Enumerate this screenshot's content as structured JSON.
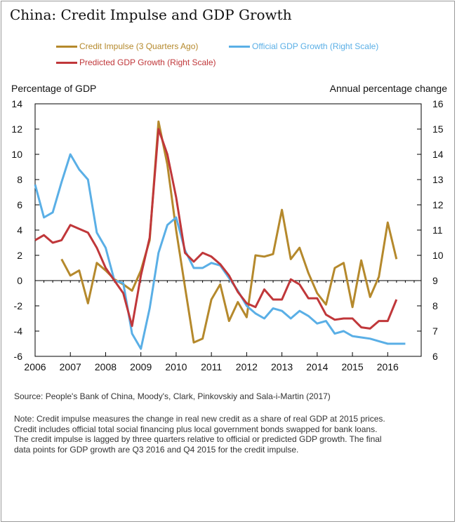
{
  "title": "China: Credit Impulse and GDP Growth",
  "legend": [
    {
      "label": "Credit Impulse (3 Quarters Ago)",
      "color": "#b5892c"
    },
    {
      "label": "Official GDP Growth (Right Scale)",
      "color": "#5aafe6"
    },
    {
      "label": "Predicted GDP Growth (Right Scale)",
      "color": "#c0373a"
    }
  ],
  "left_axis_title": "Percentage of GDP",
  "right_axis_title": "Annual percentage change",
  "source_text": "Source: People's Bank of China, Moody's, Clark, Pinkovskiy and Sala-i-Martin (2017)",
  "note_lines": [
    "Note: Credit impulse measures the change in real new credit as a share of  real GDP at 2015 prices.",
    "Credit includes official total social financing plus local government bonds swapped for bank loans.",
    "The credit impulse is lagged by three quarters relative to official or predicted GDP growth. The final",
    "data points for GDP growth are Q3 2016 and Q4 2015 for the credit impulse."
  ],
  "chart_data": {
    "type": "line",
    "x_label_years": [
      "2006",
      "2007",
      "2008",
      "2009",
      "2010",
      "2011",
      "2012",
      "2013",
      "2014",
      "2015",
      "2016"
    ],
    "xlim": [
      2006.0,
      2016.95
    ],
    "y_left": {
      "lim": [
        -6,
        14
      ],
      "ticks": [
        -6,
        -4,
        -2,
        0,
        2,
        4,
        6,
        8,
        10,
        12,
        14
      ]
    },
    "y_right": {
      "lim": [
        6,
        16
      ],
      "ticks": [
        6,
        7,
        8,
        9,
        10,
        11,
        12,
        13,
        14,
        15,
        16
      ]
    },
    "grid": false,
    "legend_position": "top",
    "series": [
      {
        "name": "Credit Impulse (3 Quarters Ago)",
        "axis": "left",
        "color": "#b5892c",
        "points": [
          [
            2006.75,
            1.7
          ],
          [
            2007.0,
            0.4
          ],
          [
            2007.25,
            0.8
          ],
          [
            2007.5,
            -1.8
          ],
          [
            2007.75,
            1.4
          ],
          [
            2008.0,
            0.8
          ],
          [
            2008.25,
            0.1
          ],
          [
            2008.5,
            -0.3
          ],
          [
            2008.75,
            -0.8
          ],
          [
            2009.0,
            0.8
          ],
          [
            2009.25,
            3.2
          ],
          [
            2009.5,
            12.6
          ],
          [
            2009.75,
            9.2
          ],
          [
            2010.0,
            4.0
          ],
          [
            2010.25,
            -0.5
          ],
          [
            2010.5,
            -4.9
          ],
          [
            2010.75,
            -4.6
          ],
          [
            2011.0,
            -1.5
          ],
          [
            2011.25,
            -0.3
          ],
          [
            2011.5,
            -3.2
          ],
          [
            2011.75,
            -1.7
          ],
          [
            2012.0,
            -2.9
          ],
          [
            2012.25,
            2.0
          ],
          [
            2012.5,
            1.9
          ],
          [
            2012.75,
            2.1
          ],
          [
            2013.0,
            5.6
          ],
          [
            2013.25,
            1.7
          ],
          [
            2013.5,
            2.6
          ],
          [
            2013.75,
            0.6
          ],
          [
            2014.0,
            -1.0
          ],
          [
            2014.25,
            -1.9
          ],
          [
            2014.5,
            1.0
          ],
          [
            2014.75,
            1.4
          ],
          [
            2015.0,
            -2.1
          ],
          [
            2015.25,
            1.6
          ],
          [
            2015.5,
            -1.3
          ],
          [
            2015.75,
            0.3
          ],
          [
            2016.0,
            4.6
          ],
          [
            2016.25,
            1.7
          ]
        ]
      },
      {
        "name": "Official GDP Growth (Right Scale)",
        "axis": "right",
        "color": "#5aafe6",
        "points": [
          [
            2006.0,
            12.8
          ],
          [
            2006.25,
            11.5
          ],
          [
            2006.5,
            11.7
          ],
          [
            2006.75,
            12.9
          ],
          [
            2007.0,
            14.0
          ],
          [
            2007.25,
            13.4
          ],
          [
            2007.5,
            13.0
          ],
          [
            2007.75,
            10.9
          ],
          [
            2008.0,
            10.3
          ],
          [
            2008.25,
            9.0
          ],
          [
            2008.5,
            8.9
          ],
          [
            2008.75,
            6.9
          ],
          [
            2009.0,
            6.3
          ],
          [
            2009.25,
            7.9
          ],
          [
            2009.5,
            10.1
          ],
          [
            2009.75,
            11.2
          ],
          [
            2010.0,
            11.5
          ],
          [
            2010.25,
            10.2
          ],
          [
            2010.5,
            9.5
          ],
          [
            2010.75,
            9.5
          ],
          [
            2011.0,
            9.7
          ],
          [
            2011.25,
            9.6
          ],
          [
            2011.5,
            9.1
          ],
          [
            2011.75,
            8.6
          ],
          [
            2012.0,
            8.0
          ],
          [
            2012.25,
            7.7
          ],
          [
            2012.5,
            7.5
          ],
          [
            2012.75,
            7.9
          ],
          [
            2013.0,
            7.8
          ],
          [
            2013.25,
            7.5
          ],
          [
            2013.5,
            7.8
          ],
          [
            2013.75,
            7.6
          ],
          [
            2014.0,
            7.3
          ],
          [
            2014.25,
            7.4
          ],
          [
            2014.5,
            6.9
          ],
          [
            2014.75,
            7.0
          ],
          [
            2015.0,
            6.8
          ],
          [
            2015.25,
            6.75
          ],
          [
            2015.5,
            6.7
          ],
          [
            2015.75,
            6.6
          ],
          [
            2016.0,
            6.5
          ],
          [
            2016.25,
            6.5
          ],
          [
            2016.5,
            6.5
          ]
        ]
      },
      {
        "name": "Predicted GDP Growth (Right Scale)",
        "axis": "right",
        "color": "#c0373a",
        "points": [
          [
            2006.0,
            10.6
          ],
          [
            2006.25,
            10.8
          ],
          [
            2006.5,
            10.5
          ],
          [
            2006.75,
            10.6
          ],
          [
            2007.0,
            11.2
          ],
          [
            2007.25,
            11.05
          ],
          [
            2007.5,
            10.9
          ],
          [
            2007.75,
            10.3
          ],
          [
            2008.0,
            9.5
          ],
          [
            2008.25,
            9.0
          ],
          [
            2008.5,
            8.5
          ],
          [
            2008.75,
            7.2
          ],
          [
            2009.0,
            9.2
          ],
          [
            2009.25,
            10.7
          ],
          [
            2009.5,
            15.0
          ],
          [
            2009.75,
            14.0
          ],
          [
            2010.0,
            12.3
          ],
          [
            2010.25,
            10.1
          ],
          [
            2010.5,
            9.75
          ],
          [
            2010.75,
            10.1
          ],
          [
            2011.0,
            9.95
          ],
          [
            2011.25,
            9.65
          ],
          [
            2011.5,
            9.2
          ],
          [
            2011.75,
            8.55
          ],
          [
            2012.0,
            8.1
          ],
          [
            2012.25,
            7.95
          ],
          [
            2012.5,
            8.65
          ],
          [
            2012.75,
            8.25
          ],
          [
            2013.0,
            8.25
          ],
          [
            2013.25,
            9.05
          ],
          [
            2013.5,
            8.85
          ],
          [
            2013.75,
            8.3
          ],
          [
            2014.0,
            8.3
          ],
          [
            2014.25,
            7.65
          ],
          [
            2014.5,
            7.45
          ],
          [
            2014.75,
            7.5
          ],
          [
            2015.0,
            7.5
          ],
          [
            2015.25,
            7.15
          ],
          [
            2015.5,
            7.1
          ],
          [
            2015.75,
            7.4
          ],
          [
            2016.0,
            7.4
          ],
          [
            2016.25,
            8.25
          ]
        ]
      }
    ]
  }
}
